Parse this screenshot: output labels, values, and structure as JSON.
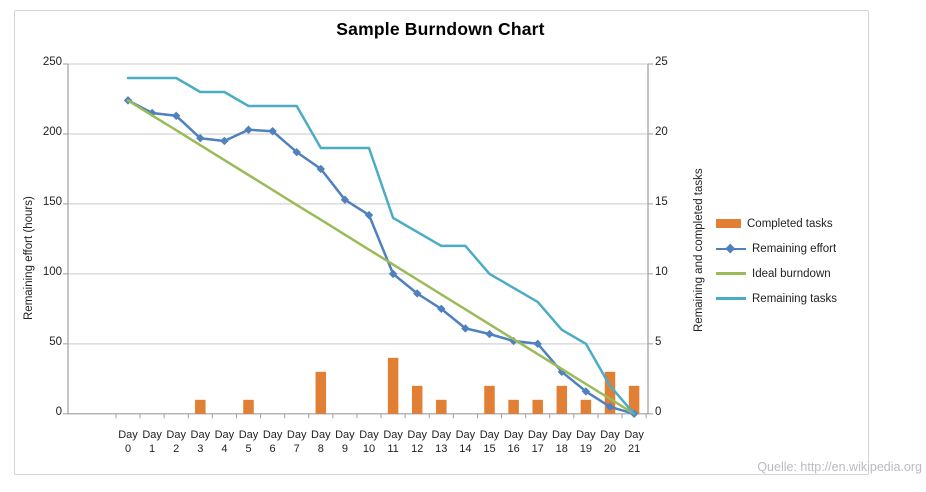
{
  "chart": {
    "title": "Sample Burndown Chart",
    "left_axis": {
      "title": "Remaining effort (hours)",
      "ticks": [
        0,
        50,
        100,
        150,
        200,
        250
      ]
    },
    "right_axis": {
      "title": "Remaining and completed tasks",
      "ticks": [
        0,
        5,
        10,
        15,
        20,
        25
      ]
    },
    "colors": {
      "gridline": "#c9c9c9",
      "axis": "#9e9e9e",
      "text": "#1f1f1f",
      "frame_border": "#d6d6d6",
      "orange": "#e17f35",
      "blue": "#4f81bd",
      "green": "#9bbb59",
      "teal": "#4bacc6"
    }
  },
  "chart_data": {
    "type": "combo",
    "title": "Sample Burndown Chart",
    "categories": [
      "Day 0",
      "Day 1",
      "Day 2",
      "Day 3",
      "Day 4",
      "Day 5",
      "Day 6",
      "Day 7",
      "Day 8",
      "Day 9",
      "Day 10",
      "Day 11",
      "Day 12",
      "Day 13",
      "Day 14",
      "Day 15",
      "Day 16",
      "Day 17",
      "Day 18",
      "Day 19",
      "Day 20",
      "Day 21"
    ],
    "left_ylabel": "Remaining effort (hours)",
    "right_ylabel": "Remaining and completed tasks",
    "left_ylim": [
      0,
      250
    ],
    "right_ylim": [
      0,
      25
    ],
    "grid": "horizontal",
    "legend_position": "right",
    "series": [
      {
        "name": "Completed tasks",
        "type": "bar",
        "axis": "right",
        "color": "#e17f35",
        "values": [
          null,
          null,
          null,
          1,
          null,
          1,
          null,
          null,
          3,
          null,
          null,
          4,
          2,
          1,
          null,
          2,
          1,
          1,
          2,
          1,
          3,
          2
        ]
      },
      {
        "name": "Remaining effort",
        "type": "line",
        "marker": "diamond",
        "axis": "left",
        "color": "#4f81bd",
        "values": [
          224,
          215,
          213,
          197,
          195,
          203,
          202,
          187,
          175,
          153,
          142,
          100,
          86,
          75,
          61,
          57,
          52,
          50,
          30,
          16,
          5,
          0
        ]
      },
      {
        "name": "Ideal burndown",
        "type": "line",
        "axis": "left",
        "color": "#9bbb59",
        "values": [
          224,
          213.3,
          202.7,
          192,
          181.3,
          170.7,
          160,
          149.3,
          138.7,
          128,
          117.3,
          106.7,
          96,
          85.3,
          74.7,
          64,
          53.3,
          42.7,
          32,
          21.3,
          10.7,
          0
        ]
      },
      {
        "name": "Remaining tasks",
        "type": "line",
        "axis": "right",
        "color": "#4bacc6",
        "values": [
          24,
          24,
          24,
          23,
          23,
          22,
          22,
          22,
          19,
          19,
          19,
          14,
          13,
          12,
          12,
          10,
          9,
          8,
          6,
          5,
          2,
          0
        ]
      }
    ]
  },
  "legend": {
    "items": [
      {
        "label": "Completed tasks",
        "swatch": "bar",
        "color": "#e17f35"
      },
      {
        "label": "Remaining effort",
        "swatch": "line-marker",
        "color": "#4f81bd"
      },
      {
        "label": "Ideal burndown",
        "swatch": "line",
        "color": "#9bbb59"
      },
      {
        "label": "Remaining tasks",
        "swatch": "line",
        "color": "#4bacc6"
      }
    ]
  },
  "source_note": "Quelle: http://en.wikipedia.org"
}
